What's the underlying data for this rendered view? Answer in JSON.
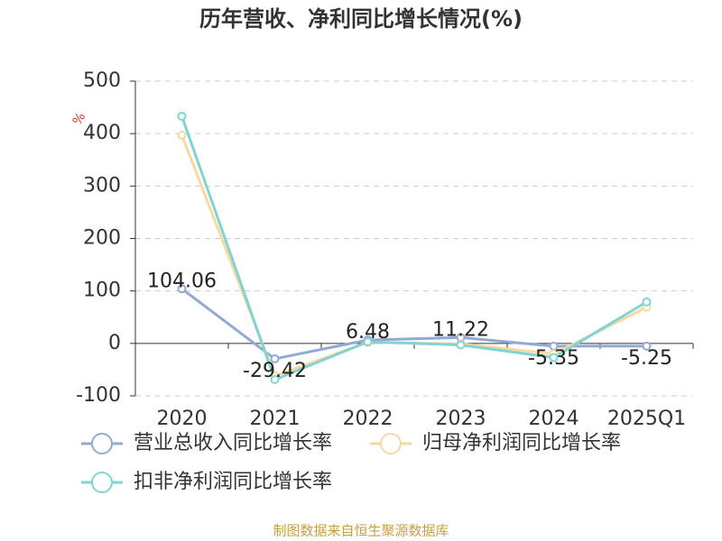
{
  "chart_data": {
    "type": "line",
    "title": "历年营收、净利同比增长情况(%)",
    "y_unit": "%",
    "categories": [
      "2020",
      "2021",
      "2022",
      "2023",
      "2024",
      "2025Q1"
    ],
    "series": [
      {
        "name": "营业总收入同比增长率",
        "color": "#92a9d6",
        "values": [
          104.06,
          -29.42,
          6.48,
          11.22,
          -5.35,
          -5.25
        ],
        "show_labels": true
      },
      {
        "name": "归母净利润同比增长率",
        "color": "#f8d99e",
        "values": [
          397,
          -62,
          2,
          -1,
          -20,
          69
        ]
      },
      {
        "name": "扣非净利润同比增长率",
        "color": "#80d4d4",
        "values": [
          433,
          -69,
          3,
          -3,
          -27,
          79
        ]
      }
    ],
    "ylim": [
      -100,
      500
    ],
    "yticks": [
      -100,
      0,
      100,
      200,
      300,
      400,
      500
    ],
    "grid": true,
    "source": "制图数据来自恒生聚源数据库"
  }
}
